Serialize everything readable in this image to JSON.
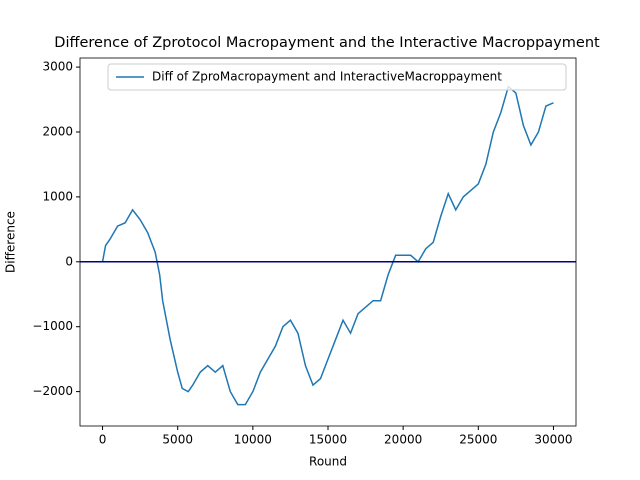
{
  "chart_data": {
    "type": "line",
    "title": "Difference of Zprotocol Macropayment and the Interactive Macroppayment",
    "x_label": "Round",
    "y_label": "Difference",
    "x": [
      0,
      200,
      500,
      1000,
      1500,
      2000,
      2500,
      3000,
      3500,
      3800,
      4000,
      4500,
      5000,
      5300,
      5700,
      6000,
      6500,
      7000,
      7500,
      8000,
      8500,
      9000,
      9500,
      10000,
      10500,
      11000,
      11500,
      12000,
      12500,
      13000,
      13500,
      14000,
      14500,
      15000,
      15500,
      16000,
      16500,
      17000,
      17500,
      18000,
      18500,
      19000,
      19500,
      20000,
      20500,
      21000,
      21500,
      22000,
      22500,
      23000,
      23500,
      24000,
      24500,
      25000,
      25500,
      26000,
      26500,
      27000,
      27500,
      28000,
      28500,
      29000,
      29500,
      30000
    ],
    "series": [
      {
        "name": "Diff of ZproMacropayment and InteractiveMacroppayment",
        "color": "#1f77b4",
        "values": [
          0,
          250,
          350,
          550,
          600,
          800,
          650,
          450,
          150,
          -200,
          -600,
          -1200,
          -1700,
          -1950,
          -2000,
          -1900,
          -1700,
          -1600,
          -1700,
          -1600,
          -2000,
          -2200,
          -2200,
          -2000,
          -1700,
          -1500,
          -1300,
          -1000,
          -900,
          -1100,
          -1600,
          -1900,
          -1800,
          -1500,
          -1200,
          -900,
          -1100,
          -800,
          -700,
          -600,
          -600,
          -200,
          100,
          100,
          100,
          0,
          200,
          300,
          700,
          1050,
          800,
          1000,
          1100,
          1200,
          1500,
          2000,
          2300,
          2700,
          2600,
          2100,
          1800,
          2000,
          2400,
          2450
        ]
      }
    ],
    "xlim": [
      -1500,
      31500
    ],
    "ylim": [
      -2530,
      3140
    ],
    "xticks": [
      0,
      5000,
      10000,
      15000,
      20000,
      25000,
      30000
    ],
    "yticks": [
      {
        "value": -2000,
        "label": "−2000"
      },
      {
        "value": -1000,
        "label": "−1000"
      },
      0,
      1000,
      2000,
      3000
    ],
    "hline": 0,
    "hline_color": "#00008b",
    "legend": "upper right"
  }
}
